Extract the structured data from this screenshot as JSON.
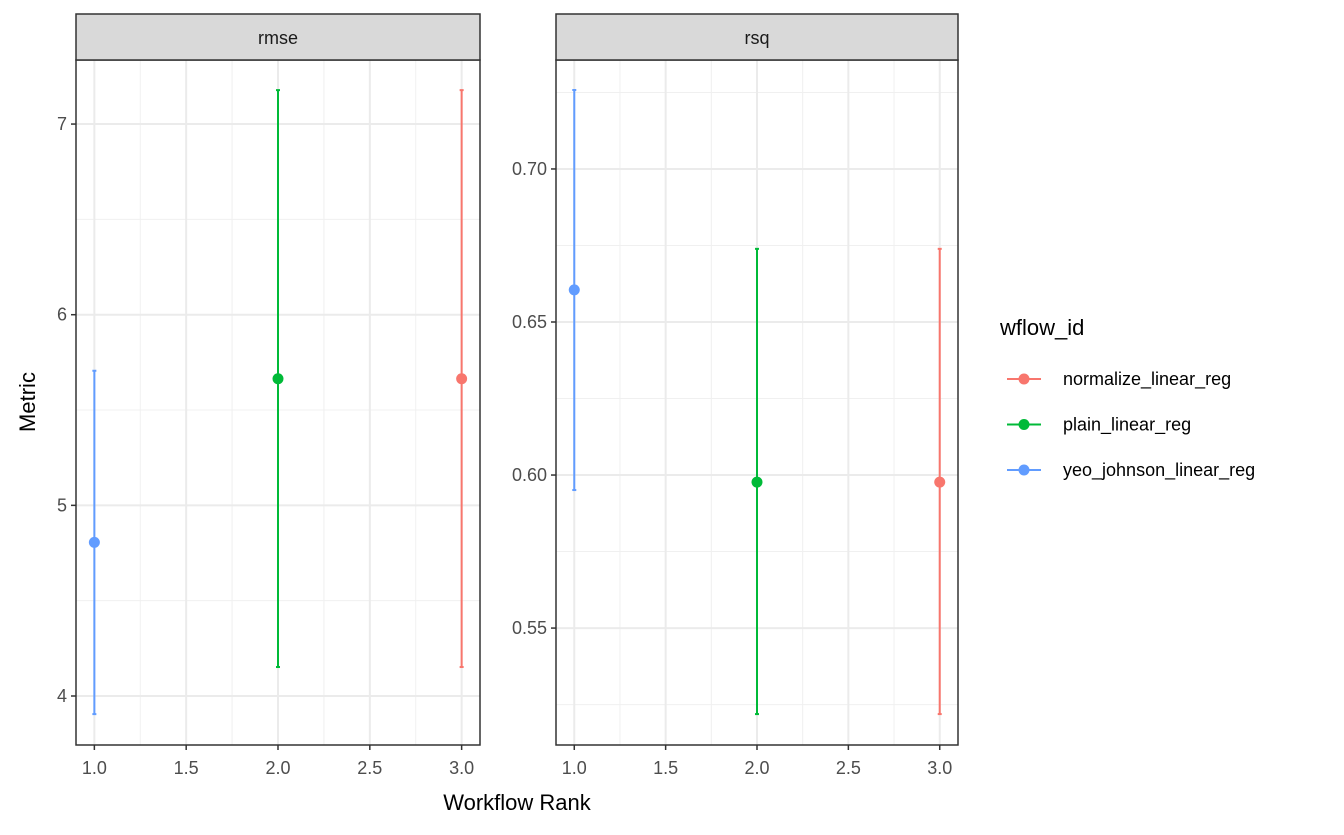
{
  "chart_data": [
    {
      "type": "scatter",
      "panel": "rmse",
      "xlabel": "Workflow Rank",
      "ylabel": "Metric",
      "xlim": [
        0.9,
        3.1
      ],
      "ylim": [
        3.743,
        7.336
      ],
      "xticks": [
        1.0,
        1.5,
        2.0,
        2.5,
        3.0
      ],
      "xtick_labels": [
        "1.0",
        "1.5",
        "2.0",
        "2.5",
        "3.0"
      ],
      "yticks": [
        4,
        5,
        6,
        7
      ],
      "ytick_labels": [
        "4",
        "5",
        "6",
        "7"
      ],
      "grid": true,
      "points": [
        {
          "series": "yeo_johnson_linear_reg",
          "x": 1,
          "y": 4.806,
          "lower": 3.905,
          "upper": 5.706
        },
        {
          "series": "plain_linear_reg",
          "x": 2,
          "y": 5.664,
          "lower": 4.152,
          "upper": 7.178
        },
        {
          "series": "normalize_linear_reg",
          "x": 3,
          "y": 5.664,
          "lower": 4.152,
          "upper": 7.178
        }
      ]
    },
    {
      "type": "scatter",
      "panel": "rsq",
      "xlim": [
        0.9,
        3.1
      ],
      "ylim": [
        0.5118,
        0.7356
      ],
      "xticks": [
        1.0,
        1.5,
        2.0,
        2.5,
        3.0
      ],
      "xtick_labels": [
        "1.0",
        "1.5",
        "2.0",
        "2.5",
        "3.0"
      ],
      "yticks": [
        0.55,
        0.6,
        0.65,
        0.7
      ],
      "ytick_labels": [
        "0.55",
        "0.60",
        "0.65",
        "0.70"
      ],
      "grid": true,
      "points": [
        {
          "series": "yeo_johnson_linear_reg",
          "x": 1,
          "y": 0.6605,
          "lower": 0.5951,
          "upper": 0.7258
        },
        {
          "series": "plain_linear_reg",
          "x": 2,
          "y": 0.5977,
          "lower": 0.5219,
          "upper": 0.6739
        },
        {
          "series": "normalize_linear_reg",
          "x": 3,
          "y": 0.5977,
          "lower": 0.5219,
          "upper": 0.6739
        }
      ]
    }
  ],
  "legend": {
    "title": "wflow_id",
    "placement": "right",
    "entries": [
      {
        "name": "normalize_linear_reg",
        "color": "#F8766D"
      },
      {
        "name": "plain_linear_reg",
        "color": "#00BA38"
      },
      {
        "name": "yeo_johnson_linear_reg",
        "color": "#619CFF"
      }
    ]
  }
}
